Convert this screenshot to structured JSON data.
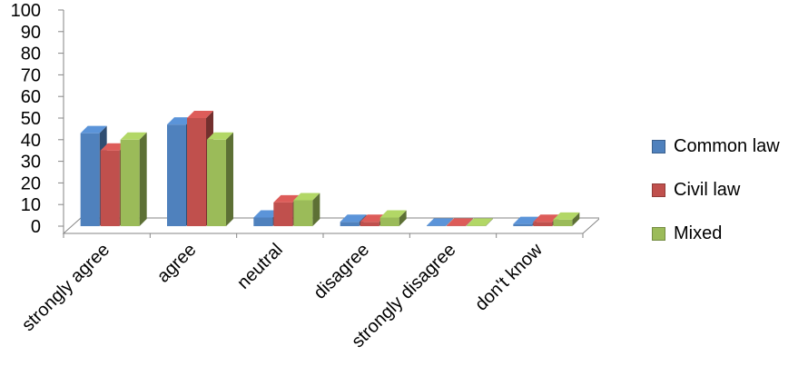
{
  "chart_data": {
    "type": "bar",
    "categories": [
      "strongly agree",
      "agree",
      "neutral",
      "disagree",
      "strongly disagree",
      "don't know"
    ],
    "series": [
      {
        "name": "Common law",
        "color": "#4F81BD",
        "values": [
          43,
          47,
          4,
          2,
          0,
          1
        ]
      },
      {
        "name": "Civil law",
        "color": "#C0504D",
        "values": [
          35,
          50,
          11,
          2,
          0,
          2
        ]
      },
      {
        "name": "Mixed",
        "color": "#9BBB59",
        "values": [
          40,
          40,
          12,
          4,
          0,
          3
        ]
      }
    ],
    "yticks": [
      "0",
      "10",
      "20",
      "30",
      "40",
      "50",
      "60",
      "70",
      "80",
      "90",
      "100"
    ],
    "ylim": [
      0,
      100
    ],
    "grid": false,
    "legend_position": "right",
    "style": "3d-clustered-column"
  }
}
